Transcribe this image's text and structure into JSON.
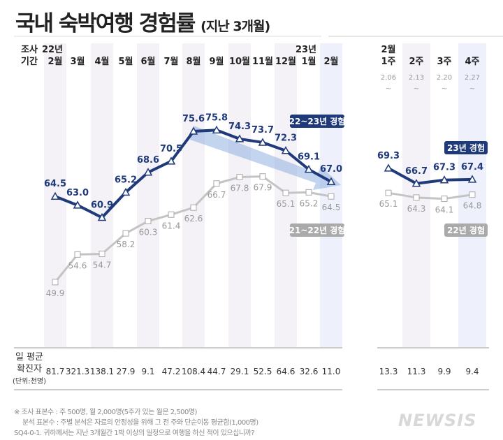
{
  "title": "국내 숙박여행 경험률",
  "title_sub": "(지난 3개월)",
  "period_label": [
    "조사",
    "기간"
  ],
  "chart_data": [
    {
      "type": "line",
      "categories": [
        "22년 2월",
        "3월",
        "4월",
        "5월",
        "6월",
        "7월",
        "8월",
        "9월",
        "10월",
        "11월",
        "12월",
        "23년 1월",
        "2월"
      ],
      "series": [
        {
          "name": "22~23년 경험",
          "color": "#1f3a7a",
          "values": [
            64.5,
            63.0,
            60.9,
            65.2,
            68.6,
            70.5,
            75.6,
            75.8,
            74.3,
            73.7,
            72.3,
            69.1,
            67.0
          ]
        },
        {
          "name": "21~22년 경험",
          "color": "#aaaaaa",
          "values": [
            49.9,
            54.6,
            54.7,
            58.2,
            60.3,
            61.4,
            62.6,
            66.7,
            67.8,
            67.9,
            65.1,
            65.2,
            64.5
          ]
        }
      ],
      "row_label": [
        "일 평균",
        "확진자",
        "(단위:천명)"
      ],
      "daily_cases": [
        "81.7",
        "321.3",
        "138.1",
        "27.9",
        "9.1",
        "47.2",
        "108.4",
        "44.7",
        "29.1",
        "52.5",
        "64.6",
        "32.6",
        "11.0"
      ]
    },
    {
      "type": "line",
      "categories": [
        "2월 1주",
        "2주",
        "3주",
        "4주"
      ],
      "dates": [
        "2.06 ~",
        "2.13 ~",
        "2.20 ~",
        "2.27 ~"
      ],
      "series": [
        {
          "name": "23년 경험",
          "color": "#1f3a7a",
          "values": [
            69.3,
            66.7,
            67.3,
            67.4
          ]
        },
        {
          "name": "22년 경험",
          "color": "#aaaaaa",
          "values": [
            65.1,
            64.3,
            64.1,
            64.8
          ]
        }
      ],
      "daily_cases": [
        "13.3",
        "11.3",
        "9.9",
        "9.4"
      ]
    }
  ],
  "notes": [
    "※ 조사 표본수 : 주 500명, 월 2,000명(5주가 있는 월은 2,500명)",
    "분석 표본수 : 주별 분석은 자료의 안정성을 위해 그 전 주와 단순이동 평균함(1,000명)",
    "SQ4-0-1. 귀하께서는 지난 3개월간 1박 이상의 일정으로 여행을 하신 적이 있으십니까?"
  ],
  "logo": "NEWSIS"
}
